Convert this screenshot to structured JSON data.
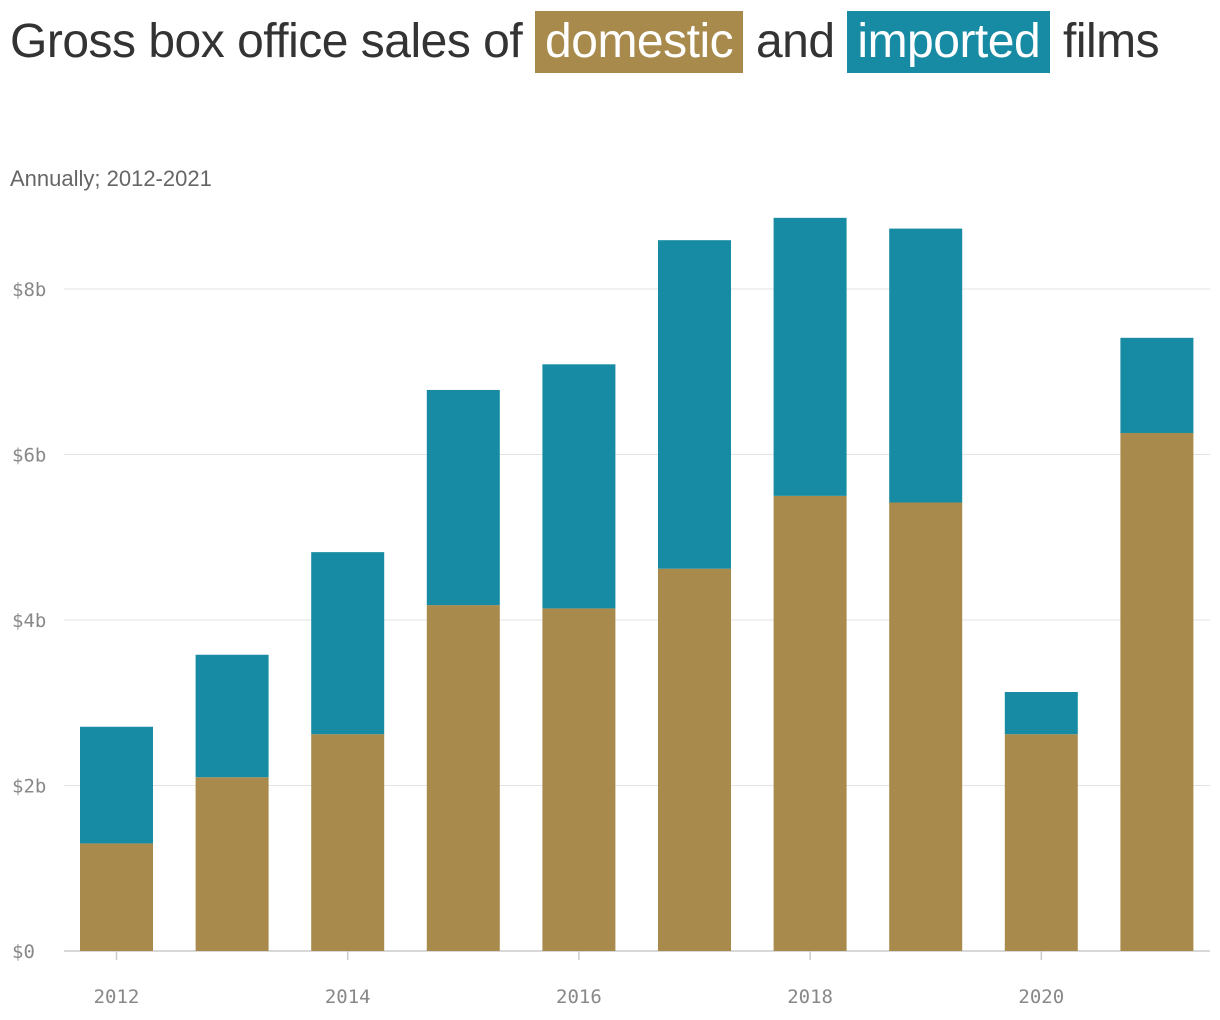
{
  "title": {
    "prefix": "Gross box office sales of",
    "domestic": "domestic",
    "middle": "and",
    "imported": "imported",
    "suffix": "films"
  },
  "subtitle": "Annually; 2012-2021",
  "colors": {
    "domestic": "#a88a4c",
    "imported": "#188ba4",
    "grid": "#e3e3e3",
    "axis": "#cccccc"
  },
  "chart_data": {
    "type": "bar",
    "stacked": true,
    "categories": [
      "2012",
      "2013",
      "2014",
      "2015",
      "2016",
      "2017",
      "2018",
      "2019",
      "2020",
      "2021"
    ],
    "series": [
      {
        "name": "domestic",
        "values": [
          1.3,
          2.1,
          2.62,
          4.18,
          4.14,
          4.62,
          5.5,
          5.42,
          2.62,
          6.26
        ]
      },
      {
        "name": "imported",
        "values": [
          1.41,
          1.48,
          2.2,
          2.6,
          2.95,
          3.97,
          3.36,
          3.31,
          0.51,
          1.15
        ]
      }
    ],
    "y_ticks": [
      0,
      2,
      4,
      6,
      8
    ],
    "y_tick_labels": [
      "$0",
      "$2b",
      "$4b",
      "$6b",
      "$8b"
    ],
    "x_tick_labels": [
      "2012",
      "2014",
      "2016",
      "2018",
      "2020"
    ],
    "ylim": [
      0,
      8.8
    ],
    "grid": true
  }
}
